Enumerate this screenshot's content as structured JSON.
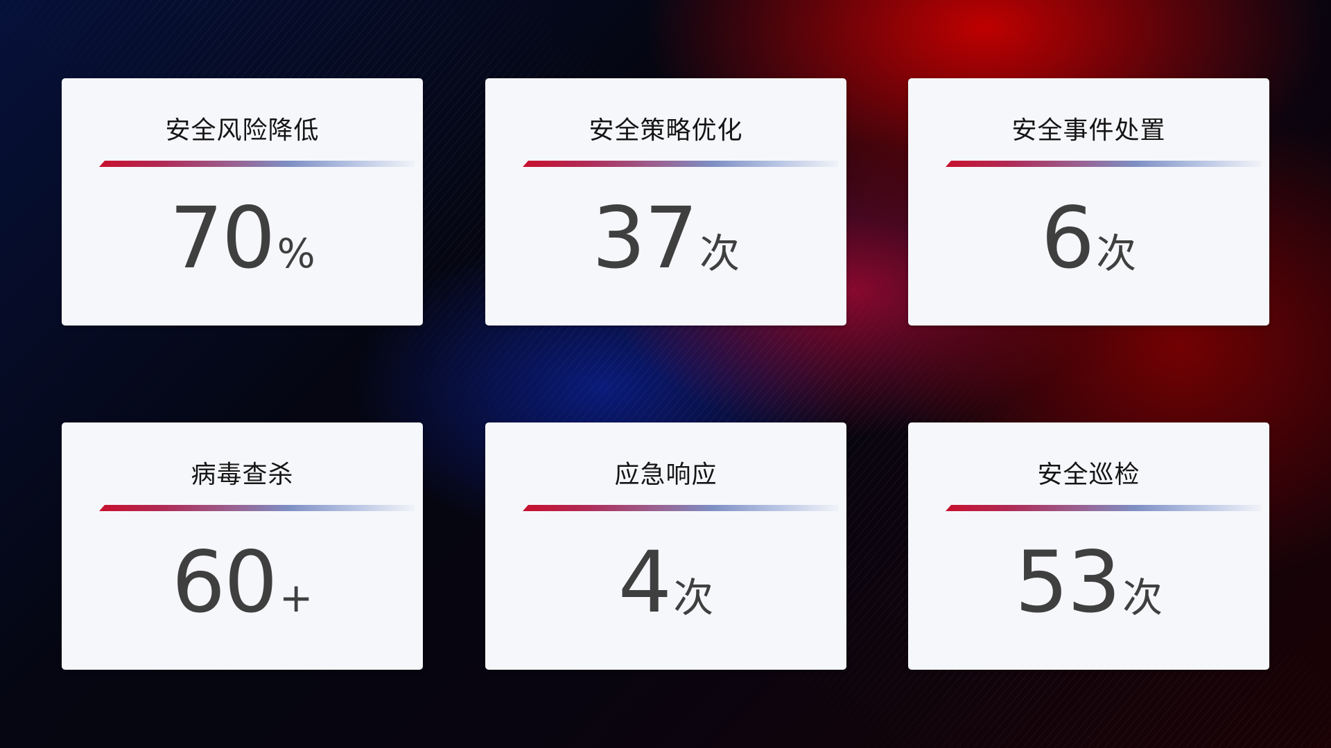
{
  "cards": [
    {
      "title": "安全风险降低",
      "value": "70",
      "unit": "%"
    },
    {
      "title": "安全策略优化",
      "value": "37",
      "unit": "次"
    },
    {
      "title": "安全事件处置",
      "value": "6",
      "unit": "次"
    },
    {
      "title": "病毒查杀",
      "value": "60",
      "unit": "+"
    },
    {
      "title": "应急响应",
      "value": "4",
      "unit": "次"
    },
    {
      "title": "安全巡检",
      "value": "53",
      "unit": "次"
    }
  ],
  "colors": {
    "accent_red": "#c8102e",
    "accent_blue": "#7e8fc4",
    "card_bg": "#f6f7fb",
    "value_text": "#3f3f3f"
  }
}
